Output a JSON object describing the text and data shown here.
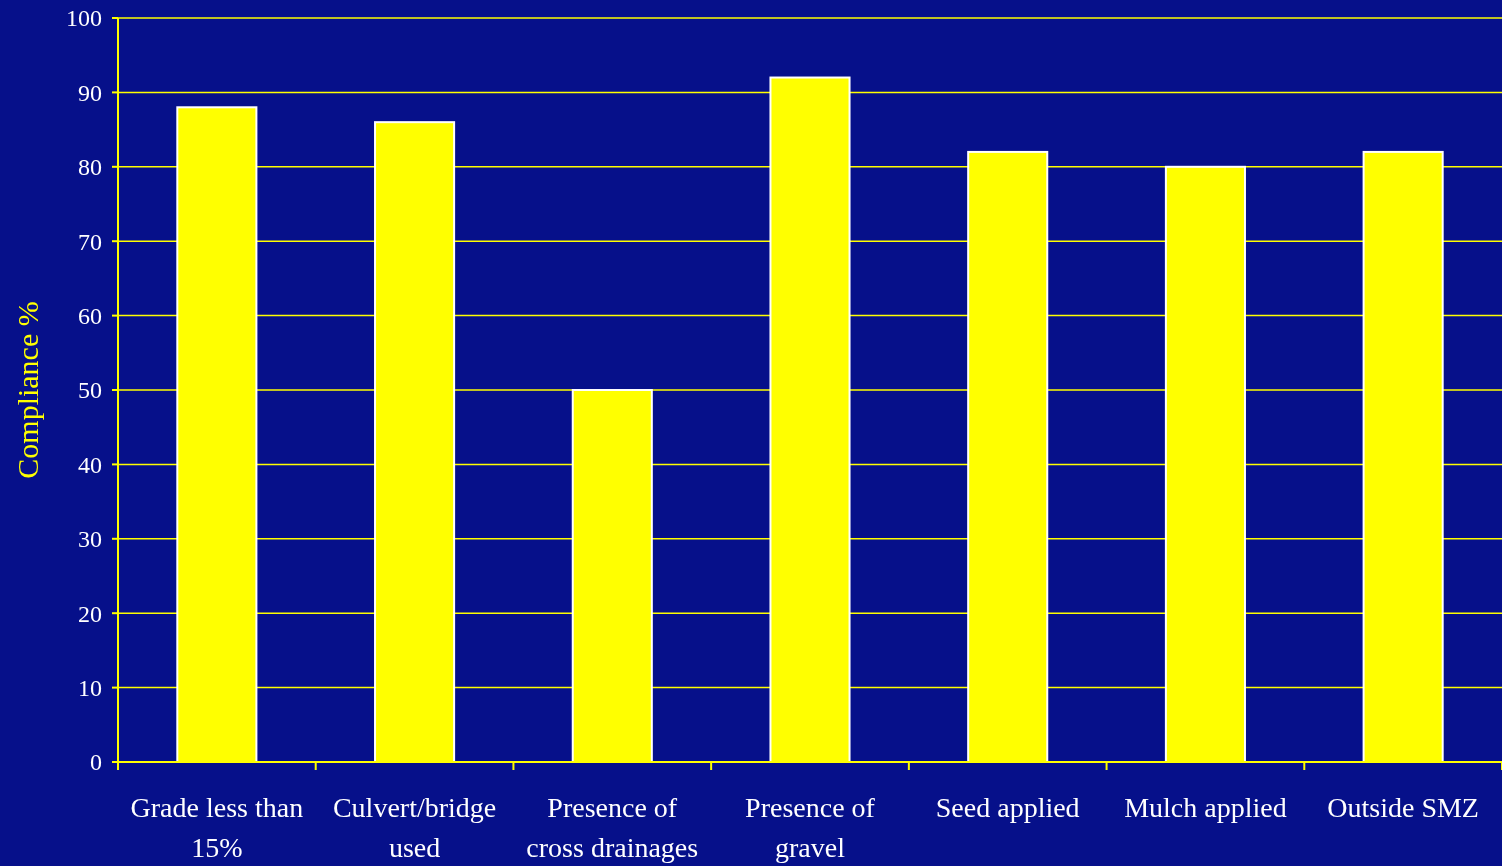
{
  "chart_data": {
    "type": "bar",
    "ylabel": "Compliance %",
    "categories": [
      "Grade less than 15%",
      "Culvert/bridge used",
      "Presence of cross drainages",
      "Presence of gravel",
      "Seed applied",
      "Mulch applied",
      "Outside SMZ"
    ],
    "values": [
      88,
      86,
      50,
      92,
      82,
      80,
      82
    ],
    "color": "#ffff00",
    "ylim": [
      0,
      100
    ],
    "yticks": [
      0,
      10,
      20,
      30,
      40,
      50,
      60,
      70,
      80,
      90,
      100
    ],
    "grid": "y"
  }
}
